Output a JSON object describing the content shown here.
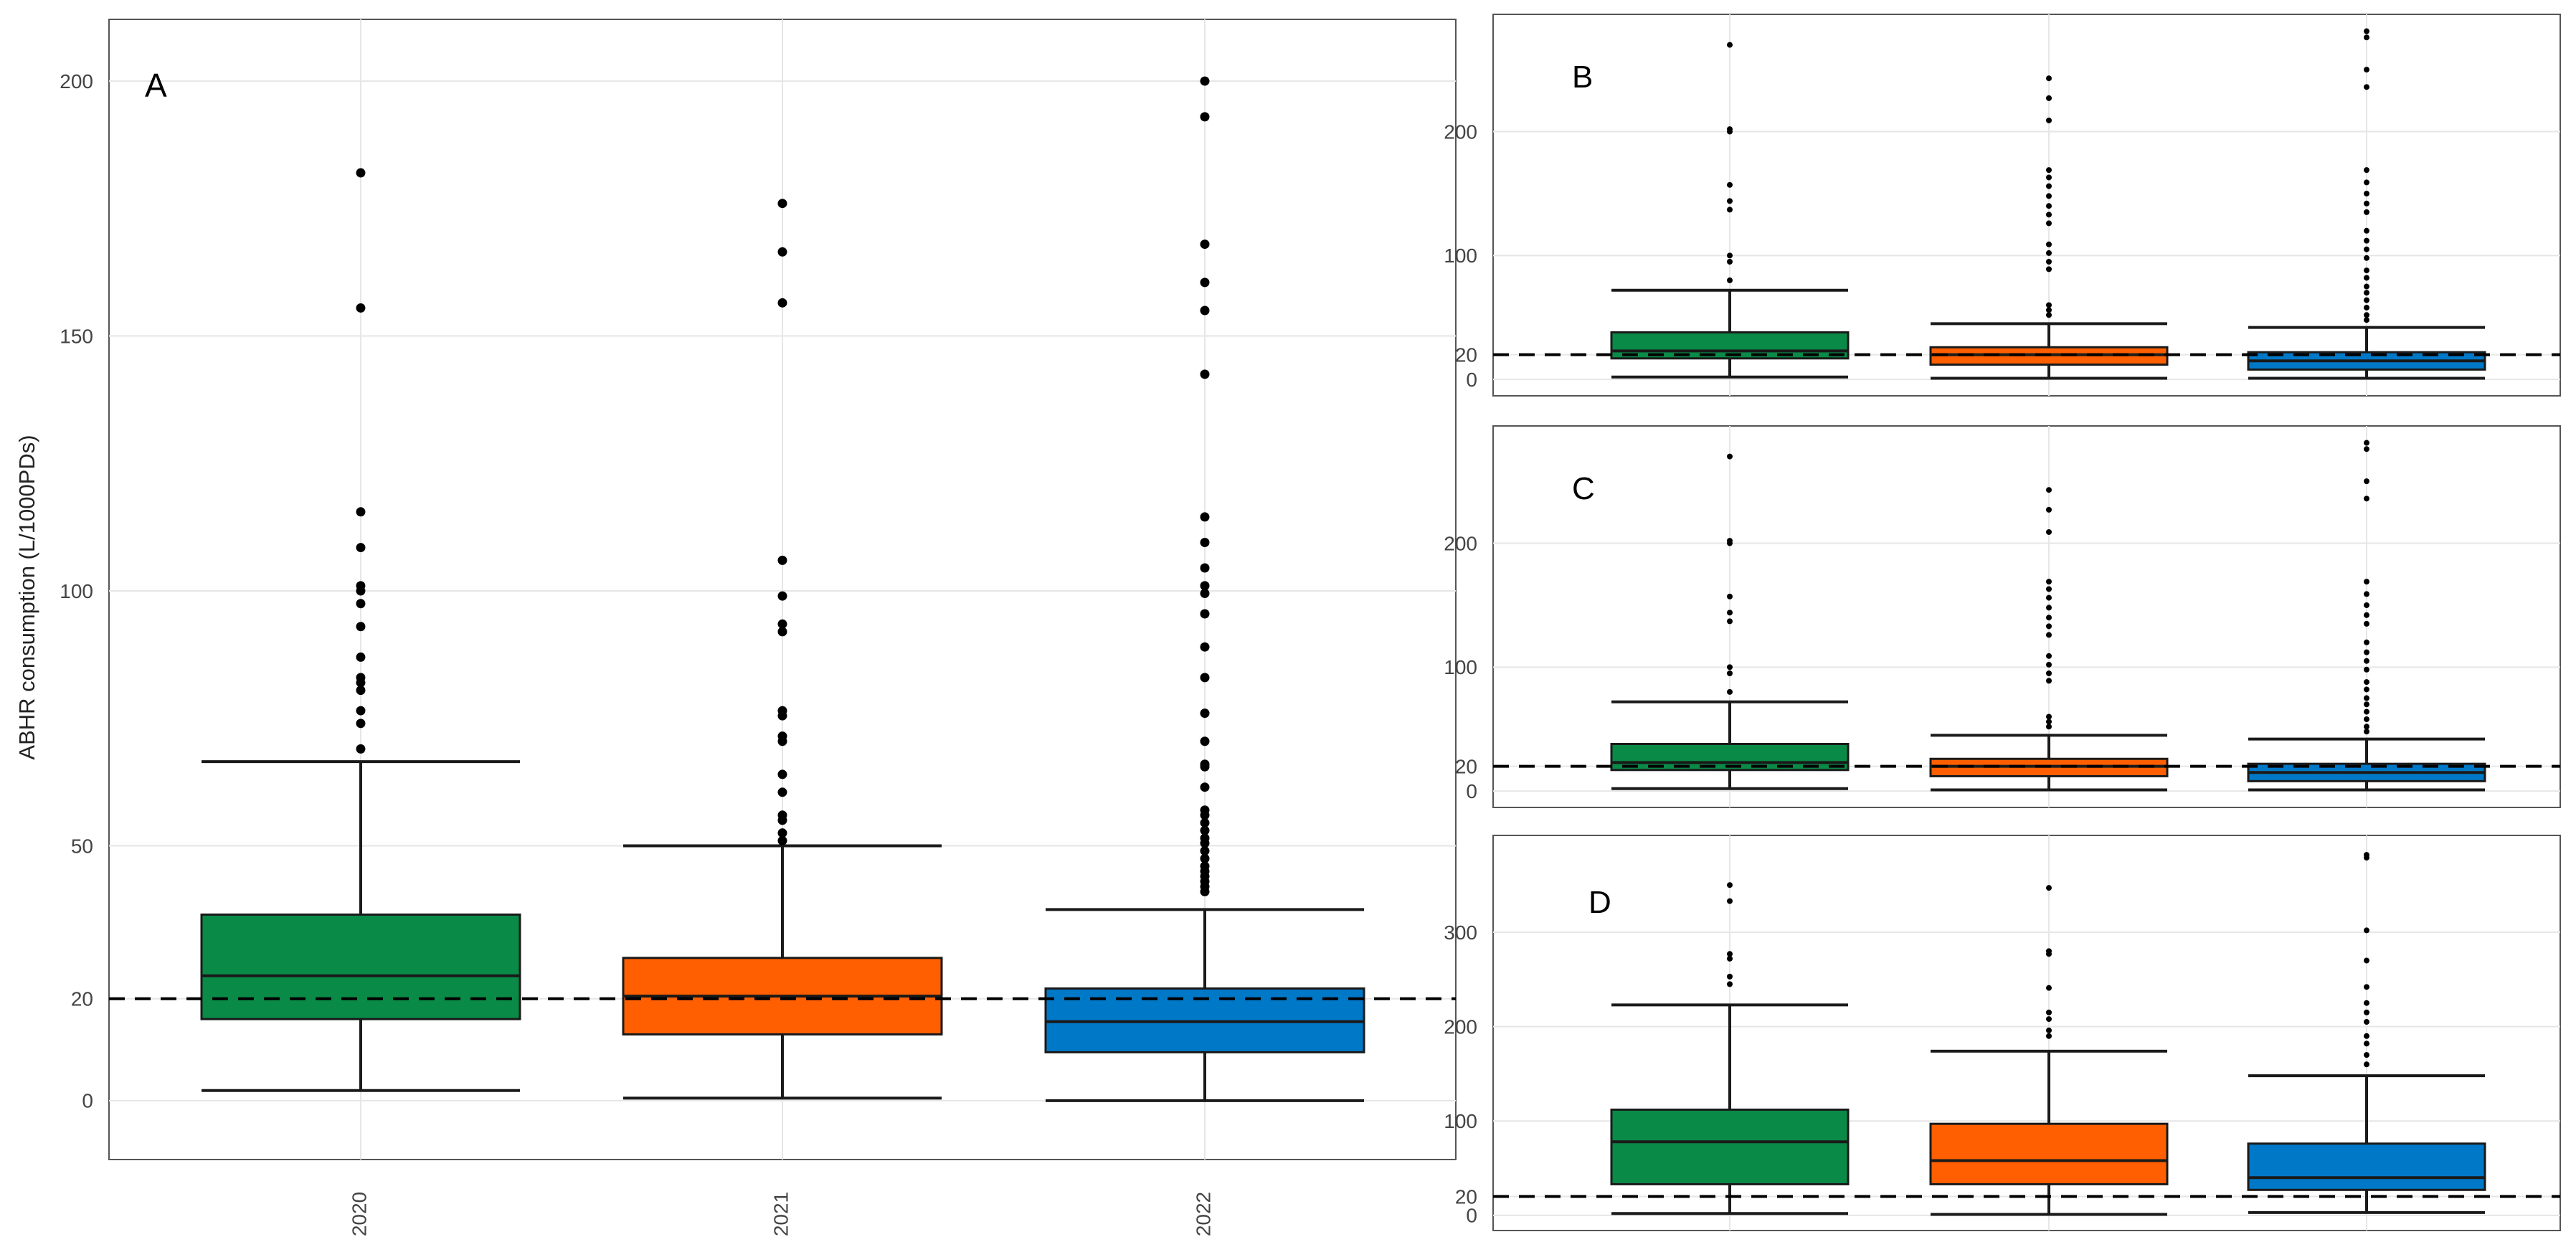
{
  "figure": {
    "ylabel": "ABHR consumption (L/1000PDs)",
    "colors": {
      "2020": "#0a8a47",
      "2021": "#ff5f00",
      "2022": "#0078c8"
    }
  },
  "chart_data": [
    {
      "id": "A",
      "label": "A",
      "type": "box",
      "categories": [
        "2020",
        "2021",
        "2022"
      ],
      "show_x_labels": true,
      "reference_line": 20,
      "ylim": [
        -10,
        210
      ],
      "yticks": [
        0,
        20,
        50,
        100,
        150,
        200
      ],
      "boxes": [
        {
          "category": "2020",
          "whisker_low": 2,
          "q1": 16,
          "median": 24.5,
          "q3": 36.5,
          "whisker_high": 66.5,
          "outliers": [
            182,
            155.5,
            115.5,
            108.5,
            101,
            100,
            97.5,
            93,
            87,
            83,
            82,
            80.5,
            76.5,
            74,
            69
          ]
        },
        {
          "category": "2021",
          "whisker_low": 0.5,
          "q1": 13,
          "median": 20.5,
          "q3": 28,
          "whisker_high": 50,
          "outliers": [
            176,
            166.5,
            156.5,
            106,
            99,
            93.5,
            92,
            76.5,
            75.5,
            71.5,
            70.5,
            64,
            60.5,
            56,
            55,
            52.5,
            51
          ]
        },
        {
          "category": "2022",
          "whisker_low": 0,
          "q1": 9.5,
          "median": 15.5,
          "q3": 22,
          "whisker_high": 37.5,
          "outliers": [
            200,
            193,
            168,
            160.5,
            155,
            142.5,
            114.5,
            109.5,
            104.5,
            101,
            99.5,
            95.5,
            89,
            83,
            76,
            70.5,
            66,
            65.5,
            61.5,
            57,
            56,
            54.5,
            53,
            51.5,
            50.5,
            49,
            47.5,
            46,
            45,
            44,
            43,
            42,
            41
          ]
        }
      ]
    },
    {
      "id": "B",
      "label": "B",
      "type": "box",
      "categories": [
        "2020",
        "2021",
        "2022"
      ],
      "show_x_labels": false,
      "reference_line": 20,
      "ylim": [
        -8,
        290
      ],
      "yticks": [
        0,
        20,
        100,
        200
      ],
      "boxes": [
        {
          "category": "2020",
          "whisker_low": 2,
          "q1": 17,
          "median": 23,
          "q3": 38,
          "whisker_high": 72,
          "outliers": [
            270,
            202,
            200,
            157,
            144,
            137,
            100,
            95,
            80
          ]
        },
        {
          "category": "2021",
          "whisker_low": 1,
          "q1": 12,
          "median": 20,
          "q3": 26,
          "whisker_high": 45,
          "outliers": [
            243,
            227,
            209,
            169,
            163,
            156,
            148,
            140,
            133,
            126,
            109,
            102,
            95,
            89,
            60,
            56,
            52
          ]
        },
        {
          "category": "2022",
          "whisker_low": 1,
          "q1": 8,
          "median": 15,
          "q3": 22,
          "whisker_high": 42,
          "outliers": [
            281,
            276,
            250,
            236,
            169,
            159,
            150,
            142,
            135,
            120,
            112,
            105,
            98,
            88,
            82,
            75,
            70,
            64,
            58,
            52,
            48
          ]
        }
      ]
    },
    {
      "id": "C",
      "label": "C",
      "type": "box",
      "categories": [
        "2020",
        "2021",
        "2022"
      ],
      "show_x_labels": false,
      "reference_line": 20,
      "ylim": [
        -8,
        290
      ],
      "yticks": [
        0,
        20,
        100,
        200
      ],
      "boxes": [
        {
          "category": "2020",
          "whisker_low": 2,
          "q1": 17,
          "median": 23,
          "q3": 38,
          "whisker_high": 72,
          "outliers": [
            270,
            202,
            200,
            157,
            144,
            137,
            100,
            95,
            80
          ]
        },
        {
          "category": "2021",
          "whisker_low": 1,
          "q1": 12,
          "median": 20,
          "q3": 26,
          "whisker_high": 45,
          "outliers": [
            243,
            227,
            209,
            169,
            163,
            156,
            148,
            140,
            133,
            126,
            109,
            102,
            95,
            89,
            60,
            56,
            52
          ]
        },
        {
          "category": "2022",
          "whisker_low": 1,
          "q1": 8,
          "median": 15,
          "q3": 22,
          "whisker_high": 42,
          "outliers": [
            281,
            276,
            250,
            236,
            169,
            159,
            150,
            142,
            135,
            120,
            112,
            105,
            98,
            88,
            82,
            75,
            70,
            64,
            58,
            52,
            48
          ]
        }
      ]
    },
    {
      "id": "D",
      "label": "D",
      "type": "box",
      "categories": [
        "2020",
        "2021",
        "2022"
      ],
      "show_x_labels": false,
      "reference_line": 20,
      "ylim": [
        -10,
        395
      ],
      "yticks": [
        0,
        20,
        100,
        200,
        300
      ],
      "boxes": [
        {
          "category": "2020",
          "whisker_low": 2,
          "q1": 33,
          "median": 78,
          "q3": 112,
          "whisker_high": 223,
          "outliers": [
            350,
            333,
            277,
            272,
            253,
            245
          ]
        },
        {
          "category": "2021",
          "whisker_low": 1,
          "q1": 33,
          "median": 58,
          "q3": 97,
          "whisker_high": 174,
          "outliers": [
            347,
            280,
            277,
            241,
            215,
            208,
            196,
            190
          ]
        },
        {
          "category": "2022",
          "whisker_low": 3,
          "q1": 27,
          "median": 40,
          "q3": 76,
          "whisker_high": 148,
          "outliers": [
            382,
            379,
            302,
            270,
            242,
            225,
            215,
            205,
            190,
            182,
            170,
            160
          ]
        }
      ]
    }
  ]
}
